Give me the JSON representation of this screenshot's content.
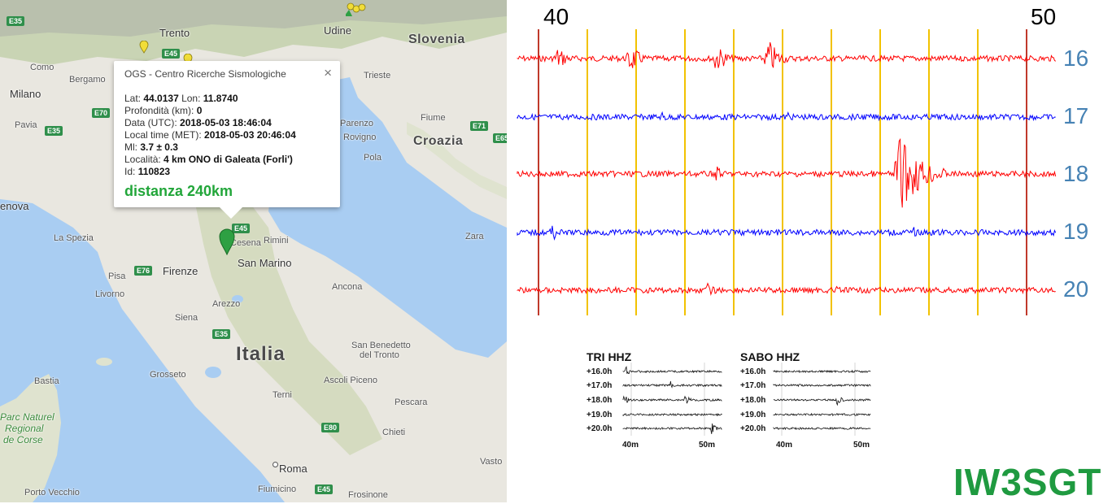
{
  "map": {
    "labels": {
      "slovenia": "Slovenia",
      "croazia": "Croazia",
      "italia": "Italia",
      "trento": "Trento",
      "udine": "Udine",
      "milano": "Milano",
      "bergamo": "Bergamo",
      "como": "Como",
      "pavia": "Pavia",
      "trieste": "Trieste",
      "fiume": "Fiume",
      "parenzo": "Parenzo",
      "rovigno": "Rovigno",
      "pola": "Pola",
      "genova": "enova",
      "la_spezia": "La Spezia",
      "pisa": "Pisa",
      "livorno": "Livorno",
      "firenze": "Firenze",
      "siena": "Siena",
      "arezzo": "Arezzo",
      "cesena": "Cesena",
      "rimini": "Rimini",
      "san_marino": "San Marino",
      "ancona": "Ancona",
      "zara": "Zara",
      "grosseto": "Grosseto",
      "bastia": "Bastia",
      "parc_naturel": "Parc Naturel",
      "regional": "Regional",
      "de_corse": "de Corse",
      "terni": "Terni",
      "ascoli_piceno": "Ascoli Piceno",
      "san_benedetto": "San Benedetto",
      "del_tronto": "del Tronto",
      "pescara": "Pescara",
      "chieti": "Chieti",
      "vasto": "Vasto",
      "roma": "Roma",
      "fiumicino": "Fiumicino",
      "frosinone": "Frosinone",
      "porto_vecchio": "Porto Vecchio"
    },
    "roads": {
      "e35a": "E35",
      "e45a": "E45",
      "e70": "E70",
      "e35b": "E35",
      "e71": "E71",
      "e45b": "E45",
      "e76": "E76",
      "e35c": "E35",
      "e80": "E80",
      "e45c": "E45",
      "e65": "E65"
    }
  },
  "popup": {
    "title": "OGS - Centro Ricerche Sismologiche",
    "close": "×",
    "rows": [
      {
        "label": "Lat: ",
        "value": "44.0137",
        "label2": " Lon: ",
        "value2": "11.8740"
      },
      {
        "label": "Profondità (km): ",
        "value": "0"
      },
      {
        "label": "Data (UTC): ",
        "value": "2018-05-03 18:46:04"
      },
      {
        "label": "Local time (MET): ",
        "value": "2018-05-03 20:46:04"
      },
      {
        "label": "Ml: ",
        "value": "3.7 ± 0.3"
      },
      {
        "label": "Località: ",
        "value": "4 km ONO di Galeata (Forli')"
      },
      {
        "label": "Id: ",
        "value": "110823"
      }
    ],
    "distance": "distanza 240km"
  },
  "seismogram": {
    "minute_labels": [
      "40",
      "50"
    ],
    "hours": [
      {
        "label": "16",
        "color": "#ff0000"
      },
      {
        "label": "17",
        "color": "#0000ff"
      },
      {
        "label": "18",
        "color": "#ff0000"
      },
      {
        "label": "19",
        "color": "#0000ff"
      },
      {
        "label": "20",
        "color": "#ff0000"
      }
    ],
    "gridline_color": "#f2c200",
    "minute_line_color": "#c0392b"
  },
  "thumbnails": [
    {
      "station": "TRI HHZ",
      "rows": [
        "+16.0h",
        "+17.0h",
        "+18.0h",
        "+19.0h",
        "+20.0h"
      ],
      "axis": [
        "40m",
        "50m"
      ]
    },
    {
      "station": "SABO HHZ",
      "rows": [
        "+16.0h",
        "+17.0h",
        "+18.0h",
        "+19.0h",
        "+20.0h"
      ],
      "axis": [
        "40m",
        "50m"
      ]
    }
  ],
  "callsign": "IW3SGT"
}
